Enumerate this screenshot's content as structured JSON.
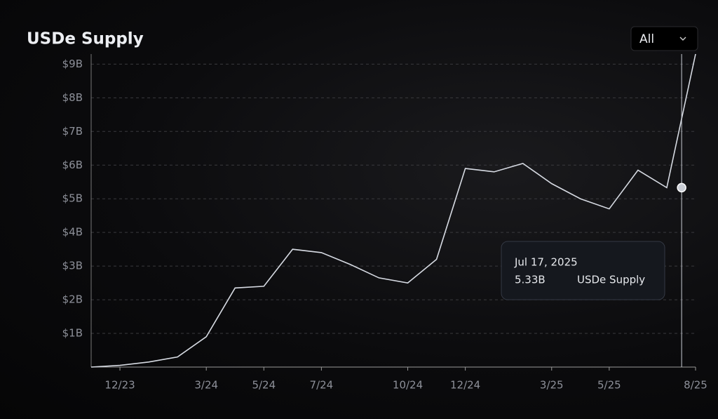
{
  "chart_data": {
    "type": "line",
    "title": "USDe Supply",
    "filter": "All",
    "x": [
      "2023-11",
      "2023-12",
      "2024-01",
      "2024-02",
      "2024-03",
      "2024-04",
      "2024-05",
      "2024-06",
      "2024-07",
      "2024-08",
      "2024-09",
      "2024-10",
      "2024-11",
      "2024-12",
      "2025-01",
      "2025-02",
      "2025-03",
      "2025-04",
      "2025-05",
      "2025-06",
      "2025-07",
      "2025-08"
    ],
    "series": [
      {
        "name": "USDe Supply",
        "color": "#d6dae2",
        "values": [
          0,
          0.05,
          0.15,
          0.3,
          0.9,
          2.35,
          2.4,
          3.5,
          3.4,
          3.05,
          2.65,
          2.5,
          3.2,
          5.9,
          5.8,
          6.05,
          5.45,
          5.0,
          4.7,
          5.85,
          5.33,
          9.3
        ]
      }
    ],
    "xlim": [
      "2023-11",
      "2025-08"
    ],
    "xticks": [
      {
        "value": "2023-12",
        "label": "12/23"
      },
      {
        "value": "2024-03",
        "label": "3/24"
      },
      {
        "value": "2024-05",
        "label": "5/24"
      },
      {
        "value": "2024-07",
        "label": "7/24"
      },
      {
        "value": "2024-10",
        "label": "10/24"
      },
      {
        "value": "2024-12",
        "label": "12/24"
      },
      {
        "value": "2025-03",
        "label": "3/25"
      },
      {
        "value": "2025-05",
        "label": "5/25"
      },
      {
        "value": "2025-08",
        "label": "8/25"
      }
    ],
    "ylim": [
      0,
      9.3
    ],
    "yticks": [
      {
        "value": 1,
        "label": "$1B"
      },
      {
        "value": 2,
        "label": "$2B"
      },
      {
        "value": 3,
        "label": "$3B"
      },
      {
        "value": 4,
        "label": "$4B"
      },
      {
        "value": 5,
        "label": "$5B"
      },
      {
        "value": 6,
        "label": "$6B"
      },
      {
        "value": 7,
        "label": "$7B"
      },
      {
        "value": 8,
        "label": "$8B"
      },
      {
        "value": 9,
        "label": "$9B"
      }
    ],
    "grid": true,
    "tooltip": {
      "date": "Jul 17, 2025",
      "value": 5.33,
      "label": "5.33B"
    }
  }
}
